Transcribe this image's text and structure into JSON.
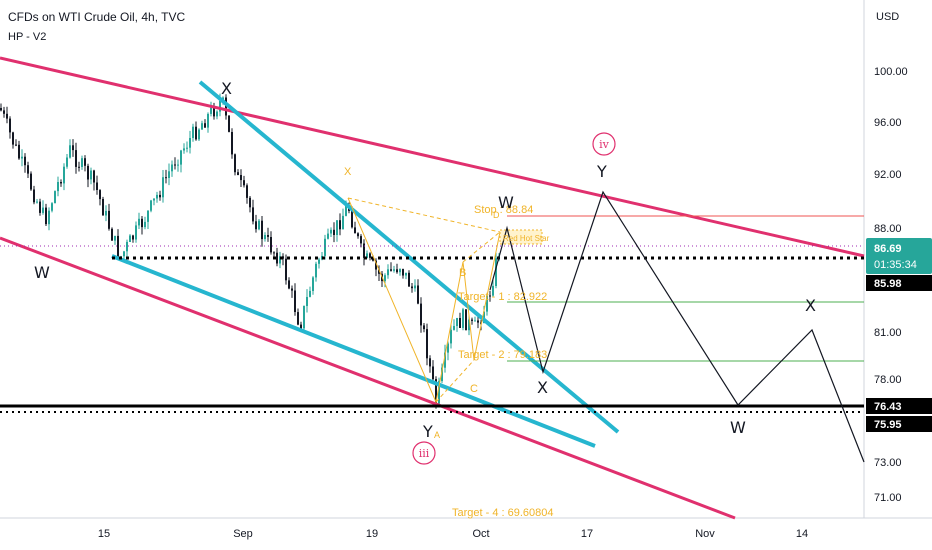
{
  "header": {
    "title": "CFDs on WTI Crude Oil, 4h, TVC",
    "indicator": "HP - V2",
    "currency": "USD"
  },
  "chart_data": {
    "type": "candlestick",
    "symbol": "CFDs on WTI Crude Oil",
    "interval": "4h",
    "source": "TVC",
    "y_ticks": [
      "100.00",
      "96.00",
      "92.00",
      "88.00",
      "81.00",
      "78.00",
      "73.00",
      "71.00"
    ],
    "x_ticks": [
      "15",
      "Sep",
      "19",
      "Oct",
      "17",
      "Nov",
      "14"
    ],
    "price_tags": [
      {
        "text": "86.69",
        "sub": "01:35:34",
        "color": "#26a69a"
      },
      {
        "text": "85.98",
        "color": "#000000"
      },
      {
        "text": "76.43",
        "color": "#000000"
      },
      {
        "text": "75.95",
        "color": "#000000"
      }
    ],
    "wave_labels": [
      "W",
      "X",
      "Y",
      "W",
      "X",
      "Y",
      "W",
      "X",
      "W",
      "X"
    ],
    "roman_labels": [
      "iii",
      "iv"
    ],
    "pattern_labels": [
      "X",
      "A",
      "B",
      "C",
      "D",
      "Red Hot Star"
    ],
    "targets": [
      "Stop : 88.84",
      "Target - 1 : 82.922",
      "Target - 2 : 79.183",
      "Target - 4 : 69.60804"
    ],
    "colors": {
      "channel": "#e0306e",
      "wedge": "#26b6cf",
      "projection": "#131722",
      "pattern": "#f0b429",
      "up_candle": "#26a69a",
      "down_candle": "#131722"
    }
  }
}
